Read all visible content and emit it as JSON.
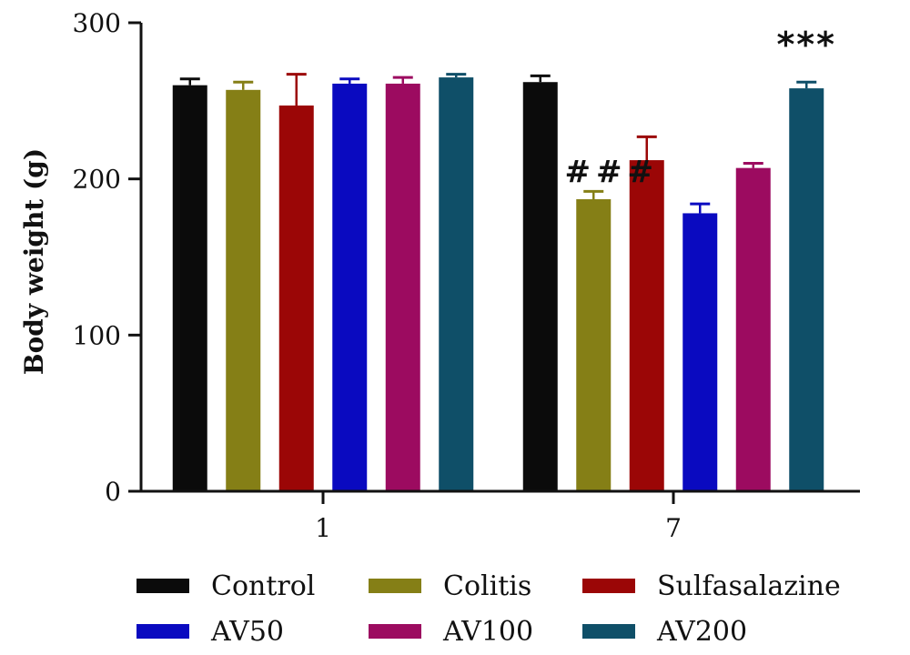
{
  "chart_data": {
    "type": "bar",
    "categories": [
      "1",
      "7"
    ],
    "ylabel": "Body weight (g)",
    "xlabel": "",
    "ylim": [
      0,
      300
    ],
    "yticks": [
      "0",
      "100",
      "200",
      "300"
    ],
    "grid": false,
    "legend_position": "bottom",
    "series": [
      {
        "name": "Control",
        "color": "#0b0b0b",
        "values": [
          260,
          262
        ],
        "errors": [
          4,
          4
        ]
      },
      {
        "name": "Colitis",
        "color": "#857f16",
        "values": [
          257,
          187
        ],
        "errors": [
          5,
          5
        ]
      },
      {
        "name": "Sulfasalazine",
        "color": "#9b0606",
        "values": [
          247,
          212
        ],
        "errors": [
          20,
          15
        ]
      },
      {
        "name": "AV50",
        "color": "#0a0ac0",
        "values": [
          261,
          178
        ],
        "errors": [
          3,
          6
        ]
      },
      {
        "name": "AV100",
        "color": "#9c0b60",
        "values": [
          261,
          207
        ],
        "errors": [
          4,
          3
        ]
      },
      {
        "name": "AV200",
        "color": "#0f4f68",
        "values": [
          265,
          258
        ],
        "errors": [
          2,
          4
        ]
      }
    ],
    "annotations": [
      {
        "text": "###",
        "category": "7",
        "series": "Colitis"
      },
      {
        "text": "***",
        "category": "7",
        "series": "AV200"
      }
    ]
  }
}
